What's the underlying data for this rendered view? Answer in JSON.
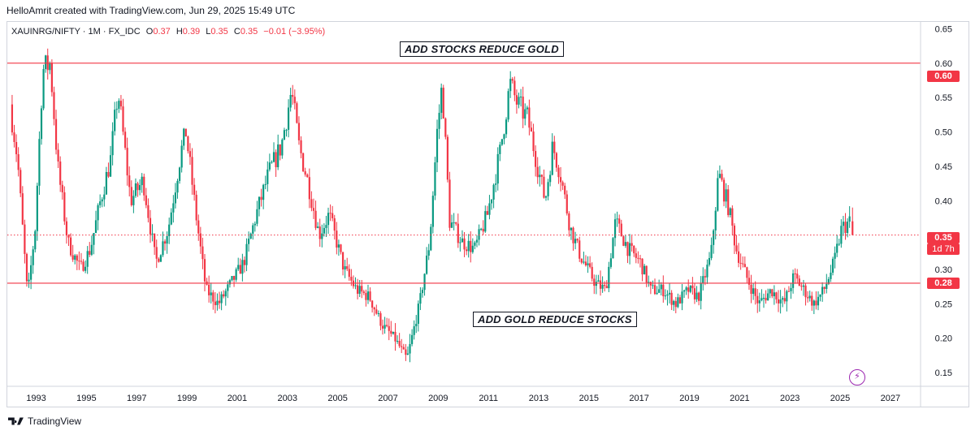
{
  "header": {
    "creator_text": "HelloAmrit created with TradingView.com, Jun 29, 2025 15:49 UTC"
  },
  "legend": {
    "symbol": "XAUINRG/NIFTY · 1M · FX_IDC",
    "open_label": "O",
    "open": "0.37",
    "high_label": "H",
    "high": "0.39",
    "low_label": "L",
    "low": "0.35",
    "close_label": "C",
    "close": "0.35",
    "change": "−0.01 (−3.95%)"
  },
  "annotations": {
    "top": "ADD STOCKS REDUCE GOLD",
    "bottom": "ADD GOLD REDUCE STOCKS"
  },
  "price_tags": {
    "upper_line": "0.60",
    "lower_line": "0.28",
    "last_price": "0.35",
    "countdown": "1d 7h"
  },
  "footer": {
    "brand": "TradingView"
  },
  "icons": {
    "alert": "lightning-icon",
    "logo": "tv-logo-icon"
  },
  "colors": {
    "up": "#089981",
    "down": "#f23645",
    "hline": "#f23645",
    "grid_text": "#131722",
    "axis_border": "#d1d4dc"
  },
  "chart_data": {
    "type": "candlestick",
    "interval": "1M",
    "x_ticks": [
      "1993",
      "1995",
      "1997",
      "1999",
      "2001",
      "2003",
      "2005",
      "2007",
      "2009",
      "2011",
      "2013",
      "2015",
      "2017",
      "2019",
      "2021",
      "2023",
      "2025",
      "2027"
    ],
    "y_ticks": [
      "0.15",
      "0.20",
      "0.25",
      "0.30",
      "0.35",
      "0.40",
      "0.45",
      "0.50",
      "0.55",
      "0.60",
      "0.65"
    ],
    "ylim": [
      0.13,
      0.66
    ],
    "xlim": [
      1991.85,
      2028.2
    ],
    "horizontal_lines": [
      {
        "value": 0.6,
        "style": "solid"
      },
      {
        "value": 0.28,
        "style": "solid"
      },
      {
        "value": 0.35,
        "style": "dotted"
      }
    ],
    "price_anchors": [
      [
        1992.0,
        0.54
      ],
      [
        1992.3,
        0.46
      ],
      [
        1992.7,
        0.26
      ],
      [
        1993.0,
        0.36
      ],
      [
        1993.3,
        0.59
      ],
      [
        1993.6,
        0.6
      ],
      [
        1993.9,
        0.45
      ],
      [
        1994.3,
        0.34
      ],
      [
        1994.8,
        0.3
      ],
      [
        1995.2,
        0.33
      ],
      [
        1995.6,
        0.4
      ],
      [
        1996.0,
        0.46
      ],
      [
        1996.3,
        0.56
      ],
      [
        1996.8,
        0.4
      ],
      [
        1997.3,
        0.43
      ],
      [
        1997.8,
        0.31
      ],
      [
        1998.3,
        0.36
      ],
      [
        1998.8,
        0.47
      ],
      [
        1999.0,
        0.5
      ],
      [
        1999.4,
        0.38
      ],
      [
        1999.8,
        0.27
      ],
      [
        2000.3,
        0.25
      ],
      [
        2000.8,
        0.28
      ],
      [
        2001.3,
        0.31
      ],
      [
        2001.8,
        0.38
      ],
      [
        2002.3,
        0.44
      ],
      [
        2002.8,
        0.48
      ],
      [
        2003.2,
        0.56
      ],
      [
        2003.5,
        0.48
      ],
      [
        2003.9,
        0.42
      ],
      [
        2004.3,
        0.35
      ],
      [
        2004.7,
        0.38
      ],
      [
        2005.3,
        0.3
      ],
      [
        2005.8,
        0.27
      ],
      [
        2006.3,
        0.26
      ],
      [
        2006.8,
        0.22
      ],
      [
        2007.3,
        0.2
      ],
      [
        2007.8,
        0.17
      ],
      [
        2008.3,
        0.25
      ],
      [
        2008.7,
        0.34
      ],
      [
        2009.0,
        0.5
      ],
      [
        2009.2,
        0.57
      ],
      [
        2009.5,
        0.37
      ],
      [
        2010.0,
        0.34
      ],
      [
        2010.5,
        0.33
      ],
      [
        2011.0,
        0.38
      ],
      [
        2011.5,
        0.47
      ],
      [
        2011.9,
        0.57
      ],
      [
        2012.2,
        0.54
      ],
      [
        2012.6,
        0.52
      ],
      [
        2013.0,
        0.45
      ],
      [
        2013.3,
        0.4
      ],
      [
        2013.6,
        0.48
      ],
      [
        2013.9,
        0.44
      ],
      [
        2014.3,
        0.36
      ],
      [
        2014.7,
        0.32
      ],
      [
        2015.3,
        0.28
      ],
      [
        2015.7,
        0.27
      ],
      [
        2016.1,
        0.37
      ],
      [
        2016.6,
        0.33
      ],
      [
        2017.1,
        0.31
      ],
      [
        2017.5,
        0.27
      ],
      [
        2018.0,
        0.27
      ],
      [
        2018.5,
        0.25
      ],
      [
        2019.0,
        0.27
      ],
      [
        2019.4,
        0.26
      ],
      [
        2019.9,
        0.32
      ],
      [
        2020.2,
        0.44
      ],
      [
        2020.6,
        0.39
      ],
      [
        2020.9,
        0.33
      ],
      [
        2021.3,
        0.29
      ],
      [
        2021.8,
        0.25
      ],
      [
        2022.3,
        0.27
      ],
      [
        2022.8,
        0.25
      ],
      [
        2023.2,
        0.29
      ],
      [
        2023.6,
        0.27
      ],
      [
        2024.0,
        0.25
      ],
      [
        2024.4,
        0.27
      ],
      [
        2024.8,
        0.31
      ],
      [
        2025.1,
        0.36
      ],
      [
        2025.45,
        0.37
      ]
    ],
    "last_candle": {
      "open": 0.37,
      "high": 0.39,
      "low": 0.35,
      "close": 0.35
    }
  }
}
